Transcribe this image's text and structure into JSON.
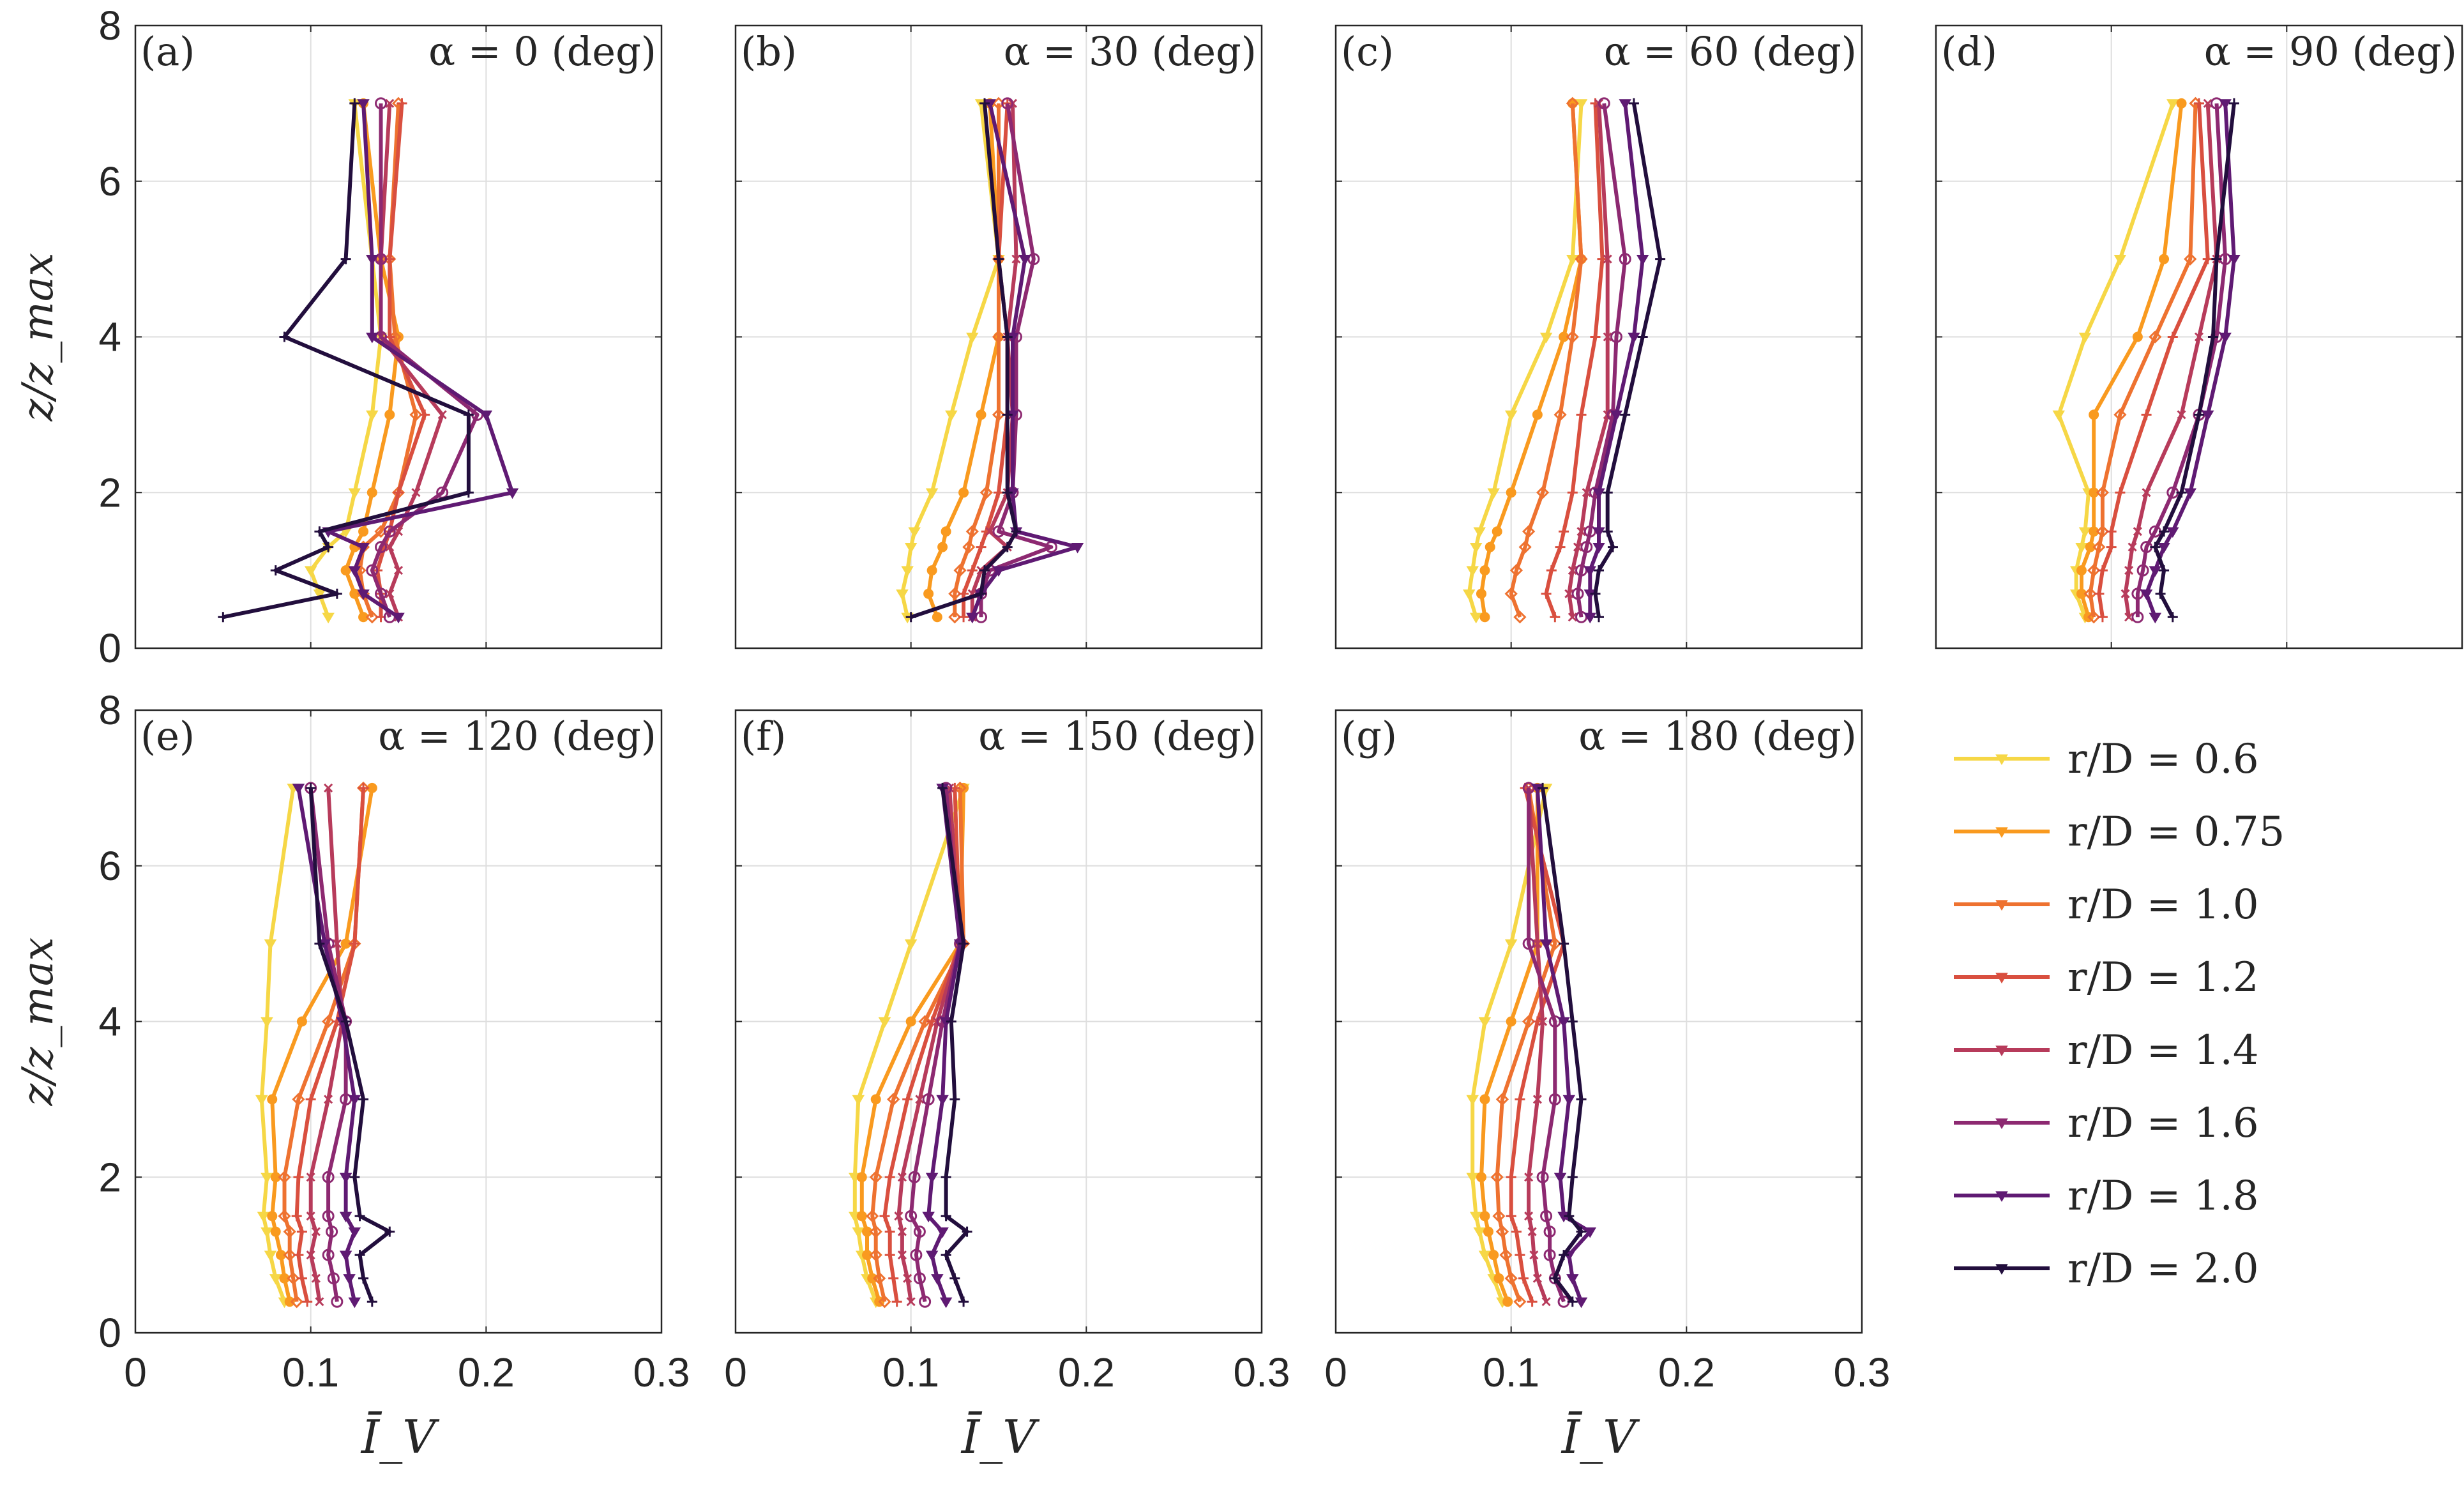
{
  "chart_data": {
    "type": "line",
    "x_axis": {
      "label": "Ī_V",
      "ticks": [
        0,
        0.1,
        0.2,
        0.3
      ],
      "tick_labels": [
        "0",
        "0.1",
        "0.2",
        "0.3"
      ],
      "xlim": [
        0,
        0.3
      ]
    },
    "y_axis": {
      "label": "z/z_max",
      "ticks": [
        0,
        2,
        4,
        6,
        8
      ],
      "tick_labels": [
        "0",
        "2",
        "4",
        "6",
        "8"
      ],
      "ylim": [
        0,
        8
      ]
    },
    "grid": true,
    "z": [
      0.4,
      0.7,
      1.0,
      1.3,
      1.5,
      2.0,
      3.0,
      4.0,
      5.0,
      7.0
    ],
    "colors": [
      "#f6d746",
      "#f99a1f",
      "#ee7230",
      "#d94f3f",
      "#b73b5b",
      "#8d2971",
      "#5f1a73",
      "#220e3d"
    ],
    "legend": {
      "location": "right",
      "entries": [
        "r/D = 0.6",
        "r/D = 0.75",
        "r/D = 1.0",
        "r/D = 1.2",
        "r/D = 1.4",
        "r/D = 1.6",
        "r/D = 1.8",
        "r/D = 2.0"
      ]
    },
    "panels": [
      {
        "tag": "(a)",
        "title": "α = 0 (deg)",
        "series": [
          {
            "name": "r/D = 0.6",
            "values": [
              0.11,
              0.105,
              0.1,
              0.11,
              0.12,
              0.125,
              0.135,
              0.14,
              0.135,
              0.125
            ]
          },
          {
            "name": "r/D = 0.75",
            "values": [
              0.13,
              0.125,
              0.12,
              0.125,
              0.13,
              0.135,
              0.145,
              0.15,
              0.14,
              0.13
            ]
          },
          {
            "name": "r/D = 1.0",
            "values": [
              0.135,
              0.13,
              0.128,
              0.13,
              0.14,
              0.15,
              0.16,
              0.148,
              0.145,
              0.15
            ]
          },
          {
            "name": "r/D = 1.2",
            "values": [
              0.14,
              0.14,
              0.138,
              0.142,
              0.145,
              0.15,
              0.165,
              0.145,
              0.145,
              0.152
            ]
          },
          {
            "name": "r/D = 1.4",
            "values": [
              0.15,
              0.145,
              0.15,
              0.145,
              0.15,
              0.16,
              0.175,
              0.14,
              0.14,
              0.145
            ]
          },
          {
            "name": "r/D = 1.6",
            "values": [
              0.145,
              0.14,
              0.135,
              0.14,
              0.145,
              0.175,
              0.195,
              0.14,
              0.14,
              0.14
            ]
          },
          {
            "name": "r/D = 1.8",
            "values": [
              0.15,
              0.13,
              0.125,
              0.13,
              0.11,
              0.215,
              0.2,
              0.135,
              0.135,
              0.13
            ]
          },
          {
            "name": "r/D = 2.0",
            "values": [
              0.05,
              0.115,
              0.08,
              0.11,
              0.105,
              0.19,
              0.19,
              0.085,
              0.12,
              0.125
            ]
          }
        ]
      },
      {
        "tag": "(b)",
        "title": "α = 30 (deg)",
        "series": [
          {
            "name": "r/D = 0.6",
            "values": [
              0.098,
              0.095,
              0.098,
              0.1,
              0.102,
              0.112,
              0.123,
              0.135,
              0.15,
              0.14
            ]
          },
          {
            "name": "r/D = 0.75",
            "values": [
              0.115,
              0.11,
              0.112,
              0.118,
              0.12,
              0.13,
              0.14,
              0.15,
              0.15,
              0.145
            ]
          },
          {
            "name": "r/D = 1.0",
            "values": [
              0.125,
              0.125,
              0.128,
              0.133,
              0.135,
              0.143,
              0.15,
              0.15,
              0.15,
              0.15
            ]
          },
          {
            "name": "r/D = 1.2",
            "values": [
              0.13,
              0.13,
              0.135,
              0.14,
              0.143,
              0.15,
              0.155,
              0.155,
              0.15,
              0.155
            ]
          },
          {
            "name": "r/D = 1.4",
            "values": [
              0.135,
              0.135,
              0.14,
              0.155,
              0.145,
              0.155,
              0.158,
              0.155,
              0.16,
              0.158
            ]
          },
          {
            "name": "r/D = 1.6",
            "values": [
              0.14,
              0.14,
              0.145,
              0.18,
              0.15,
              0.158,
              0.16,
              0.16,
              0.17,
              0.155
            ]
          },
          {
            "name": "r/D = 1.8",
            "values": [
              0.135,
              0.14,
              0.15,
              0.195,
              0.16,
              0.158,
              0.158,
              0.158,
              0.165,
              0.145
            ]
          },
          {
            "name": "r/D = 2.0",
            "values": [
              0.1,
              0.14,
              0.142,
              0.155,
              0.16,
              0.155,
              0.155,
              0.155,
              0.15,
              0.142
            ]
          }
        ]
      },
      {
        "tag": "(c)",
        "title": "α = 60 (deg)",
        "series": [
          {
            "name": "r/D = 0.6",
            "values": [
              0.08,
              0.076,
              0.078,
              0.08,
              0.082,
              0.09,
              0.1,
              0.12,
              0.135,
              0.14
            ]
          },
          {
            "name": "r/D = 0.75",
            "values": [
              0.085,
              0.083,
              0.085,
              0.088,
              0.092,
              0.1,
              0.115,
              0.13,
              0.14,
              0.135
            ]
          },
          {
            "name": "r/D = 1.0",
            "values": [
              0.105,
              0.1,
              0.103,
              0.108,
              0.11,
              0.118,
              0.128,
              0.135,
              0.14,
              0.135
            ]
          },
          {
            "name": "r/D = 1.2",
            "values": [
              0.125,
              0.12,
              0.123,
              0.128,
              0.13,
              0.135,
              0.14,
              0.148,
              0.152,
              0.148
            ]
          },
          {
            "name": "r/D = 1.4",
            "values": [
              0.135,
              0.133,
              0.135,
              0.138,
              0.14,
              0.143,
              0.155,
              0.155,
              0.155,
              0.15
            ]
          },
          {
            "name": "r/D = 1.6",
            "values": [
              0.14,
              0.138,
              0.14,
              0.143,
              0.145,
              0.148,
              0.158,
              0.16,
              0.165,
              0.153
            ]
          },
          {
            "name": "r/D = 1.8",
            "values": [
              0.145,
              0.145,
              0.145,
              0.15,
              0.15,
              0.15,
              0.16,
              0.17,
              0.175,
              0.165
            ]
          },
          {
            "name": "r/D = 2.0",
            "values": [
              0.15,
              0.148,
              0.15,
              0.158,
              0.155,
              0.155,
              0.165,
              0.175,
              0.185,
              0.17
            ]
          }
        ]
      },
      {
        "tag": "(d)",
        "title": "α = 90 (deg)",
        "series": [
          {
            "name": "r/D = 0.6",
            "values": [
              0.085,
              0.08,
              0.08,
              0.083,
              0.085,
              0.087,
              0.07,
              0.085,
              0.105,
              0.135
            ]
          },
          {
            "name": "r/D = 0.75",
            "values": [
              0.087,
              0.083,
              0.083,
              0.088,
              0.09,
              0.09,
              0.09,
              0.115,
              0.13,
              0.14
            ]
          },
          {
            "name": "r/D = 1.0",
            "values": [
              0.09,
              0.088,
              0.09,
              0.093,
              0.095,
              0.095,
              0.105,
              0.125,
              0.145,
              0.148
            ]
          },
          {
            "name": "r/D = 1.2",
            "values": [
              0.095,
              0.093,
              0.095,
              0.1,
              0.1,
              0.105,
              0.12,
              0.135,
              0.155,
              0.15
            ]
          },
          {
            "name": "r/D = 1.4",
            "values": [
              0.11,
              0.108,
              0.11,
              0.112,
              0.115,
              0.12,
              0.14,
              0.15,
              0.16,
              0.155
            ]
          },
          {
            "name": "r/D = 1.6",
            "values": [
              0.115,
              0.115,
              0.118,
              0.12,
              0.125,
              0.135,
              0.15,
              0.16,
              0.165,
              0.16
            ]
          },
          {
            "name": "r/D = 1.8",
            "values": [
              0.125,
              0.12,
              0.125,
              0.13,
              0.135,
              0.145,
              0.155,
              0.165,
              0.17,
              0.165
            ]
          },
          {
            "name": "r/D = 2.0",
            "values": [
              0.135,
              0.128,
              0.13,
              0.125,
              0.13,
              0.14,
              0.15,
              0.158,
              0.16,
              0.17
            ]
          }
        ]
      },
      {
        "tag": "(e)",
        "title": "α = 120 (deg)",
        "series": [
          {
            "name": "r/D = 0.6",
            "values": [
              0.085,
              0.08,
              0.077,
              0.075,
              0.073,
              0.075,
              0.072,
              0.075,
              0.077,
              0.09
            ]
          },
          {
            "name": "r/D = 0.75",
            "values": [
              0.088,
              0.085,
              0.083,
              0.08,
              0.078,
              0.08,
              0.078,
              0.095,
              0.12,
              0.135
            ]
          },
          {
            "name": "r/D = 1.0",
            "values": [
              0.092,
              0.09,
              0.088,
              0.088,
              0.085,
              0.085,
              0.093,
              0.11,
              0.125,
              0.13
            ]
          },
          {
            "name": "r/D = 1.2",
            "values": [
              0.098,
              0.095,
              0.093,
              0.095,
              0.092,
              0.093,
              0.1,
              0.115,
              0.125,
              0.13
            ]
          },
          {
            "name": "r/D = 1.4",
            "values": [
              0.105,
              0.103,
              0.1,
              0.103,
              0.1,
              0.1,
              0.11,
              0.118,
              0.115,
              0.11
            ]
          },
          {
            "name": "r/D = 1.6",
            "values": [
              0.115,
              0.113,
              0.11,
              0.112,
              0.11,
              0.11,
              0.12,
              0.12,
              0.11,
              0.1
            ]
          },
          {
            "name": "r/D = 1.8",
            "values": [
              0.125,
              0.122,
              0.12,
              0.125,
              0.12,
              0.12,
              0.125,
              0.118,
              0.108,
              0.093
            ]
          },
          {
            "name": "r/D = 2.0",
            "values": [
              0.135,
              0.13,
              0.128,
              0.145,
              0.128,
              0.125,
              0.13,
              0.12,
              0.105,
              0.1
            ]
          }
        ]
      },
      {
        "tag": "(f)",
        "title": "α = 150 (deg)",
        "series": [
          {
            "name": "r/D = 0.6",
            "values": [
              0.08,
              0.075,
              0.072,
              0.07,
              0.068,
              0.068,
              0.07,
              0.085,
              0.1,
              0.13
            ]
          },
          {
            "name": "r/D = 0.75",
            "values": [
              0.082,
              0.078,
              0.075,
              0.075,
              0.072,
              0.072,
              0.08,
              0.1,
              0.128,
              0.13
            ]
          },
          {
            "name": "r/D = 1.0",
            "values": [
              0.085,
              0.082,
              0.08,
              0.08,
              0.078,
              0.08,
              0.09,
              0.108,
              0.13,
              0.128
            ]
          },
          {
            "name": "r/D = 1.2",
            "values": [
              0.092,
              0.09,
              0.088,
              0.088,
              0.085,
              0.088,
              0.098,
              0.112,
              0.128,
              0.125
            ]
          },
          {
            "name": "r/D = 1.4",
            "values": [
              0.1,
              0.098,
              0.095,
              0.095,
              0.093,
              0.095,
              0.105,
              0.115,
              0.128,
              0.122
            ]
          },
          {
            "name": "r/D = 1.6",
            "values": [
              0.108,
              0.105,
              0.103,
              0.105,
              0.1,
              0.102,
              0.11,
              0.118,
              0.128,
              0.12
            ]
          },
          {
            "name": "r/D = 1.8",
            "values": [
              0.12,
              0.115,
              0.112,
              0.118,
              0.11,
              0.112,
              0.118,
              0.12,
              0.128,
              0.118
            ]
          },
          {
            "name": "r/D = 2.0",
            "values": [
              0.13,
              0.125,
              0.12,
              0.132,
              0.12,
              0.12,
              0.125,
              0.123,
              0.13,
              0.118
            ]
          }
        ]
      },
      {
        "tag": "(g)",
        "title": "α = 180 (deg)",
        "series": [
          {
            "name": "r/D = 0.6",
            "values": [
              0.095,
              0.09,
              0.085,
              0.082,
              0.08,
              0.078,
              0.078,
              0.085,
              0.1,
              0.12
            ]
          },
          {
            "name": "r/D = 0.75",
            "values": [
              0.098,
              0.093,
              0.09,
              0.087,
              0.085,
              0.083,
              0.085,
              0.1,
              0.115,
              0.115
            ]
          },
          {
            "name": "r/D = 1.0",
            "values": [
              0.105,
              0.1,
              0.097,
              0.095,
              0.093,
              0.092,
              0.095,
              0.11,
              0.125,
              0.11
            ]
          },
          {
            "name": "r/D = 1.2",
            "values": [
              0.112,
              0.107,
              0.105,
              0.103,
              0.1,
              0.1,
              0.105,
              0.115,
              0.13,
              0.108
            ]
          },
          {
            "name": "r/D = 1.4",
            "values": [
              0.12,
              0.115,
              0.113,
              0.112,
              0.11,
              0.11,
              0.115,
              0.118,
              0.115,
              0.11
            ]
          },
          {
            "name": "r/D = 1.6",
            "values": [
              0.13,
              0.125,
              0.122,
              0.122,
              0.12,
              0.118,
              0.125,
              0.125,
              0.11,
              0.11
            ]
          },
          {
            "name": "r/D = 1.8",
            "values": [
              0.14,
              0.135,
              0.133,
              0.145,
              0.13,
              0.128,
              0.133,
              0.13,
              0.12,
              0.115
            ]
          },
          {
            "name": "r/D = 2.0",
            "values": [
              0.135,
              0.125,
              0.13,
              0.14,
              0.133,
              0.135,
              0.14,
              0.135,
              0.13,
              0.118
            ]
          }
        ]
      }
    ]
  }
}
